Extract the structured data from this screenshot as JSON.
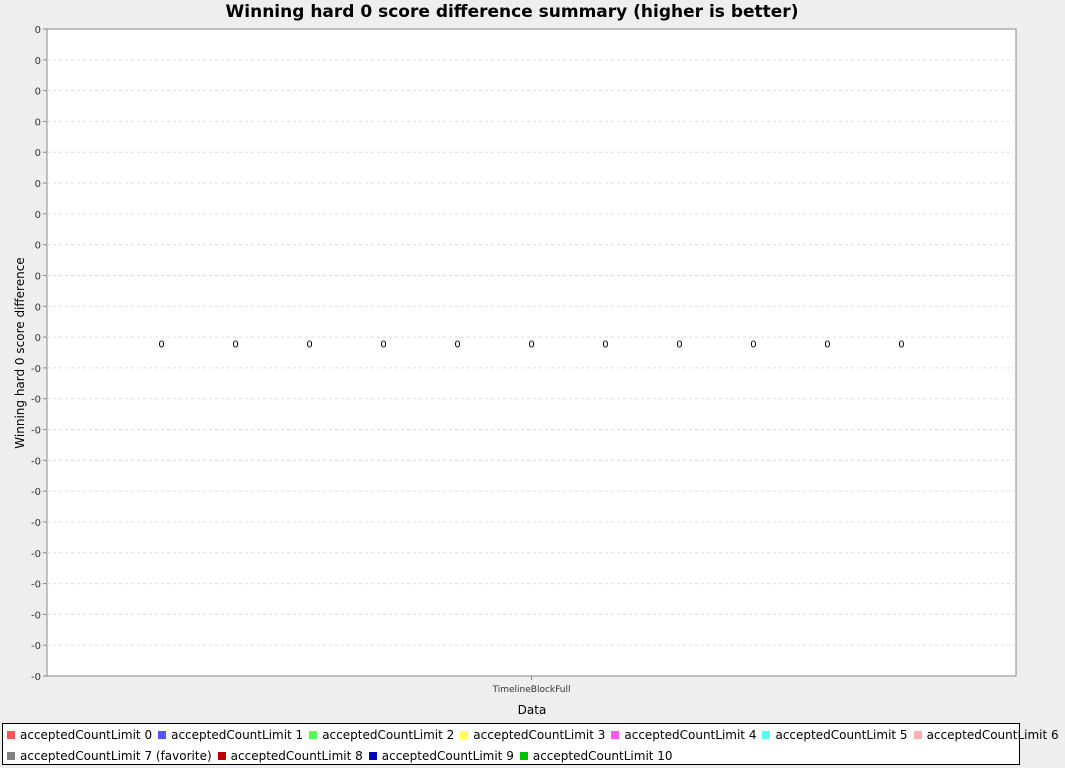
{
  "chart_data": {
    "type": "bar",
    "title": "Winning hard 0 score difference summary (higher is better)",
    "xlabel": "Data",
    "ylabel": "Winning hard 0 score difference",
    "categories": [
      "TimelineBlockFull"
    ],
    "ylim": [
      -0.5,
      0.5
    ],
    "y_tick_labels": [
      "0",
      "0",
      "0",
      "0",
      "0",
      "0",
      "0",
      "0",
      "0",
      "0",
      "0",
      "-0",
      "-0",
      "-0",
      "-0",
      "-0",
      "-0",
      "-0",
      "-0",
      "-0",
      "-0",
      "-0"
    ],
    "grid": true,
    "legend_position": "bottom",
    "series": [
      {
        "name": "acceptedCountLimit 0",
        "color": "#ff5555",
        "values": [
          0
        ],
        "label": "0"
      },
      {
        "name": "acceptedCountLimit 1",
        "color": "#5555ff",
        "values": [
          0
        ],
        "label": "0"
      },
      {
        "name": "acceptedCountLimit 2",
        "color": "#55ff55",
        "values": [
          0
        ],
        "label": "0"
      },
      {
        "name": "acceptedCountLimit 3",
        "color": "#ffff55",
        "values": [
          0
        ],
        "label": "0"
      },
      {
        "name": "acceptedCountLimit 4",
        "color": "#ff55ff",
        "values": [
          0
        ],
        "label": "0"
      },
      {
        "name": "acceptedCountLimit 5",
        "color": "#55ffff",
        "values": [
          0
        ],
        "label": "0"
      },
      {
        "name": "acceptedCountLimit 6",
        "color": "#ffafaf",
        "values": [
          0
        ],
        "label": "0"
      },
      {
        "name": "acceptedCountLimit 7 (favorite)",
        "color": "#808080",
        "values": [
          0
        ],
        "label": "0"
      },
      {
        "name": "acceptedCountLimit 8",
        "color": "#c00000",
        "values": [
          0
        ],
        "label": "0"
      },
      {
        "name": "acceptedCountLimit 9",
        "color": "#0000c0",
        "values": [
          0
        ],
        "label": "0"
      },
      {
        "name": "acceptedCountLimit 10",
        "color": "#00c000",
        "values": [
          0
        ],
        "label": "0"
      }
    ]
  }
}
